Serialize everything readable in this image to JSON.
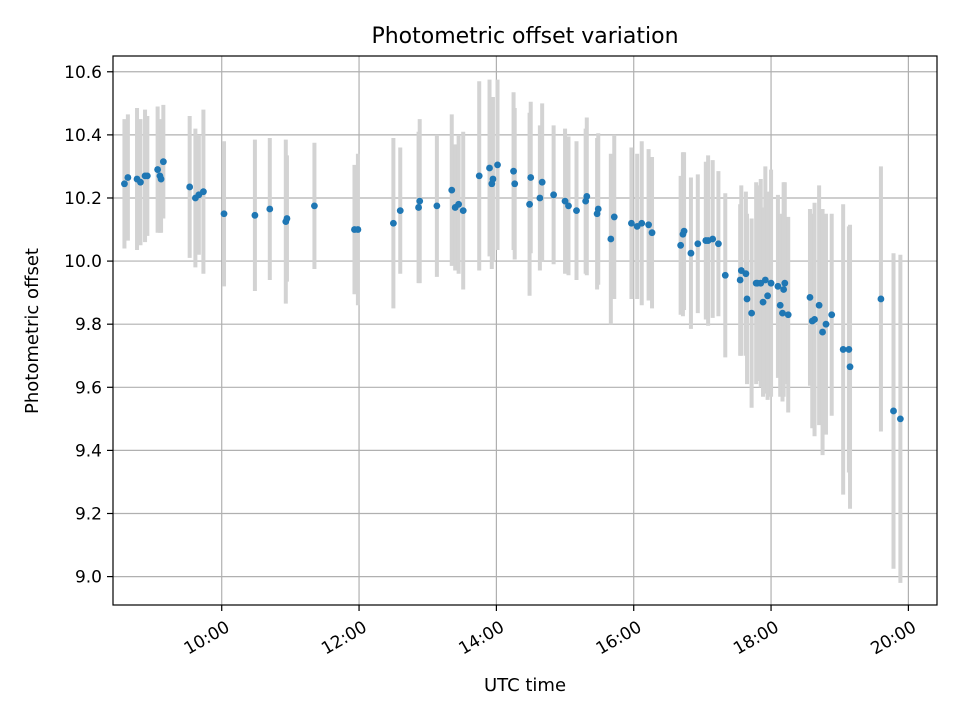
{
  "chart_data": {
    "type": "scatter",
    "title": "Photometric offset variation",
    "xlabel": "UTC time",
    "ylabel": "Photometric offset",
    "xlim": [
      "08:25",
      "20:25"
    ],
    "ylim": [
      8.91,
      10.65
    ],
    "x_ticks": [
      "10:00",
      "12:00",
      "14:00",
      "16:00",
      "18:00",
      "20:00"
    ],
    "y_ticks": [
      "9.0",
      "9.2",
      "9.4",
      "9.6",
      "9.8",
      "10.0",
      "10.2",
      "10.4",
      "10.6"
    ],
    "grid": true,
    "colors": {
      "marker": "#1f77b4",
      "errorbar": "#d3d3d3"
    },
    "series": [
      {
        "points": [
          {
            "t": "08:35",
            "y": 10.245,
            "err": 0.205
          },
          {
            "t": "08:38",
            "y": 10.265,
            "err": 0.2
          },
          {
            "t": "08:46",
            "y": 10.26,
            "err": 0.225
          },
          {
            "t": "08:49",
            "y": 10.25,
            "err": 0.2
          },
          {
            "t": "08:53",
            "y": 10.27,
            "err": 0.21
          },
          {
            "t": "08:55",
            "y": 10.27,
            "err": 0.19
          },
          {
            "t": "09:04",
            "y": 10.29,
            "err": 0.2
          },
          {
            "t": "09:06",
            "y": 10.27,
            "err": 0.18
          },
          {
            "t": "09:07",
            "y": 10.26,
            "err": 0.17
          },
          {
            "t": "09:09",
            "y": 10.315,
            "err": 0.18
          },
          {
            "t": "09:32",
            "y": 10.235,
            "err": 0.225
          },
          {
            "t": "09:37",
            "y": 10.2,
            "err": 0.22
          },
          {
            "t": "09:40",
            "y": 10.21,
            "err": 0.19
          },
          {
            "t": "09:44",
            "y": 10.22,
            "err": 0.26
          },
          {
            "t": "10:02",
            "y": 10.15,
            "err": 0.23
          },
          {
            "t": "10:29",
            "y": 10.145,
            "err": 0.24
          },
          {
            "t": "10:42",
            "y": 10.165,
            "err": 0.225
          },
          {
            "t": "10:56",
            "y": 10.125,
            "err": 0.26
          },
          {
            "t": "10:57",
            "y": 10.135,
            "err": 0.2
          },
          {
            "t": "11:21",
            "y": 10.175,
            "err": 0.2
          },
          {
            "t": "11:56",
            "y": 10.1,
            "err": 0.205
          },
          {
            "t": "11:59",
            "y": 10.1,
            "err": 0.24
          },
          {
            "t": "12:30",
            "y": 10.12,
            "err": 0.27
          },
          {
            "t": "12:36",
            "y": 10.16,
            "err": 0.2
          },
          {
            "t": "12:52",
            "y": 10.17,
            "err": 0.24
          },
          {
            "t": "12:53",
            "y": 10.19,
            "err": 0.26
          },
          {
            "t": "13:08",
            "y": 10.175,
            "err": 0.225
          },
          {
            "t": "13:21",
            "y": 10.225,
            "err": 0.24
          },
          {
            "t": "13:24",
            "y": 10.17,
            "err": 0.2
          },
          {
            "t": "13:27",
            "y": 10.18,
            "err": 0.22
          },
          {
            "t": "13:31",
            "y": 10.16,
            "err": 0.25
          },
          {
            "t": "13:45",
            "y": 10.27,
            "err": 0.3
          },
          {
            "t": "13:54",
            "y": 10.295,
            "err": 0.28
          },
          {
            "t": "13:56",
            "y": 10.245,
            "err": 0.27
          },
          {
            "t": "13:57",
            "y": 10.26,
            "err": 0.26
          },
          {
            "t": "14:01",
            "y": 10.305,
            "err": 0.27
          },
          {
            "t": "14:15",
            "y": 10.285,
            "err": 0.25
          },
          {
            "t": "14:16",
            "y": 10.245,
            "err": 0.24
          },
          {
            "t": "14:29",
            "y": 10.18,
            "err": 0.29
          },
          {
            "t": "14:30",
            "y": 10.265,
            "err": 0.24
          },
          {
            "t": "14:38",
            "y": 10.2,
            "err": 0.23
          },
          {
            "t": "14:40",
            "y": 10.25,
            "err": 0.25
          },
          {
            "t": "14:50",
            "y": 10.21,
            "err": 0.22
          },
          {
            "t": "15:00",
            "y": 10.19,
            "err": 0.23
          },
          {
            "t": "15:03",
            "y": 10.175,
            "err": 0.22
          },
          {
            "t": "15:10",
            "y": 10.16,
            "err": 0.22
          },
          {
            "t": "15:18",
            "y": 10.19,
            "err": 0.23
          },
          {
            "t": "15:19",
            "y": 10.205,
            "err": 0.25
          },
          {
            "t": "15:28",
            "y": 10.15,
            "err": 0.24
          },
          {
            "t": "15:29",
            "y": 10.165,
            "err": 0.24
          },
          {
            "t": "15:40",
            "y": 10.07,
            "err": 0.27
          },
          {
            "t": "15:43",
            "y": 10.14,
            "err": 0.26
          },
          {
            "t": "15:58",
            "y": 10.12,
            "err": 0.24
          },
          {
            "t": "16:03",
            "y": 10.11,
            "err": 0.23
          },
          {
            "t": "16:07",
            "y": 10.12,
            "err": 0.26
          },
          {
            "t": "16:13",
            "y": 10.115,
            "err": 0.24
          },
          {
            "t": "16:16",
            "y": 10.09,
            "err": 0.24
          },
          {
            "t": "16:41",
            "y": 10.05,
            "err": 0.22
          },
          {
            "t": "16:43",
            "y": 10.085,
            "err": 0.26
          },
          {
            "t": "16:44",
            "y": 10.095,
            "err": 0.25
          },
          {
            "t": "16:50",
            "y": 10.025,
            "err": 0.24
          },
          {
            "t": "16:56",
            "y": 10.055,
            "err": 0.22
          },
          {
            "t": "17:03",
            "y": 10.065,
            "err": 0.25
          },
          {
            "t": "17:05",
            "y": 10.065,
            "err": 0.27
          },
          {
            "t": "17:09",
            "y": 10.07,
            "err": 0.25
          },
          {
            "t": "17:14",
            "y": 10.055,
            "err": 0.23
          },
          {
            "t": "17:20",
            "y": 9.955,
            "err": 0.26
          },
          {
            "t": "17:33",
            "y": 9.94,
            "err": 0.24
          },
          {
            "t": "17:34",
            "y": 9.97,
            "err": 0.27
          },
          {
            "t": "17:38",
            "y": 9.96,
            "err": 0.26
          },
          {
            "t": "17:39",
            "y": 9.88,
            "err": 0.27
          },
          {
            "t": "17:43",
            "y": 9.835,
            "err": 0.3
          },
          {
            "t": "17:47",
            "y": 9.93,
            "err": 0.32
          },
          {
            "t": "17:48",
            "y": 9.93,
            "err": 0.31
          },
          {
            "t": "17:51",
            "y": 9.93,
            "err": 0.33
          },
          {
            "t": "17:53",
            "y": 9.87,
            "err": 0.3
          },
          {
            "t": "17:55",
            "y": 9.94,
            "err": 0.36
          },
          {
            "t": "17:57",
            "y": 9.89,
            "err": 0.33
          },
          {
            "t": "18:00",
            "y": 9.93,
            "err": 0.36
          },
          {
            "t": "18:06",
            "y": 9.92,
            "err": 0.29
          },
          {
            "t": "18:08",
            "y": 9.86,
            "err": 0.29
          },
          {
            "t": "18:10",
            "y": 9.835,
            "err": 0.28
          },
          {
            "t": "18:11",
            "y": 9.91,
            "err": 0.34
          },
          {
            "t": "18:12",
            "y": 9.93,
            "err": 0.32
          },
          {
            "t": "18:15",
            "y": 9.83,
            "err": 0.31
          },
          {
            "t": "18:34",
            "y": 9.885,
            "err": 0.28
          },
          {
            "t": "18:36",
            "y": 9.81,
            "err": 0.34
          },
          {
            "t": "18:38",
            "y": 9.815,
            "err": 0.37
          },
          {
            "t": "18:42",
            "y": 9.86,
            "err": 0.38
          },
          {
            "t": "18:45",
            "y": 9.775,
            "err": 0.39
          },
          {
            "t": "18:48",
            "y": 9.8,
            "err": 0.35
          },
          {
            "t": "18:53",
            "y": 9.83,
            "err": 0.32
          },
          {
            "t": "19:03",
            "y": 9.72,
            "err": 0.46
          },
          {
            "t": "19:08",
            "y": 9.72,
            "err": 0.39
          },
          {
            "t": "19:09",
            "y": 9.665,
            "err": 0.45
          },
          {
            "t": "19:36",
            "y": 9.88,
            "err": 0.42
          },
          {
            "t": "19:47",
            "y": 9.525,
            "err": 0.5
          },
          {
            "t": "19:53",
            "y": 9.5,
            "err": 0.52
          }
        ]
      }
    ]
  }
}
